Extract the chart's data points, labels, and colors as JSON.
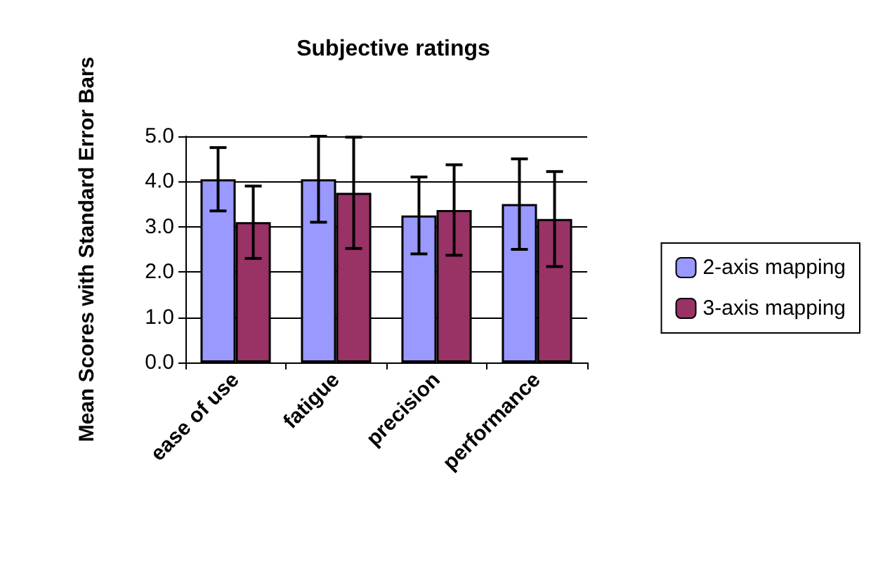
{
  "chart_data": {
    "type": "bar",
    "title": "Subjective ratings",
    "ylabel": "Mean Scores with Standard Error Bars",
    "categories": [
      "ease of use",
      "fatigue",
      "precision",
      "performance"
    ],
    "series": [
      {
        "name": "2-axis mapping",
        "color": "#9999ff",
        "values": [
          4.05,
          4.05,
          3.25,
          3.5
        ],
        "errors": [
          0.7,
          0.95,
          0.85,
          1.0
        ]
      },
      {
        "name": "3-axis mapping",
        "color": "#993366",
        "values": [
          3.1,
          3.75,
          3.37,
          3.17
        ],
        "errors": [
          0.8,
          1.23,
          1.0,
          1.05
        ]
      }
    ],
    "ylim": [
      0,
      5
    ],
    "yticks": [
      {
        "value": 0,
        "label": "0.0"
      },
      {
        "value": 1,
        "label": "1.0"
      },
      {
        "value": 2,
        "label": "2.0"
      },
      {
        "value": 3,
        "label": "3.0"
      },
      {
        "value": 4,
        "label": "4.0"
      },
      {
        "value": 5,
        "label": "5.0"
      }
    ],
    "grid": "y",
    "legend": "right"
  }
}
